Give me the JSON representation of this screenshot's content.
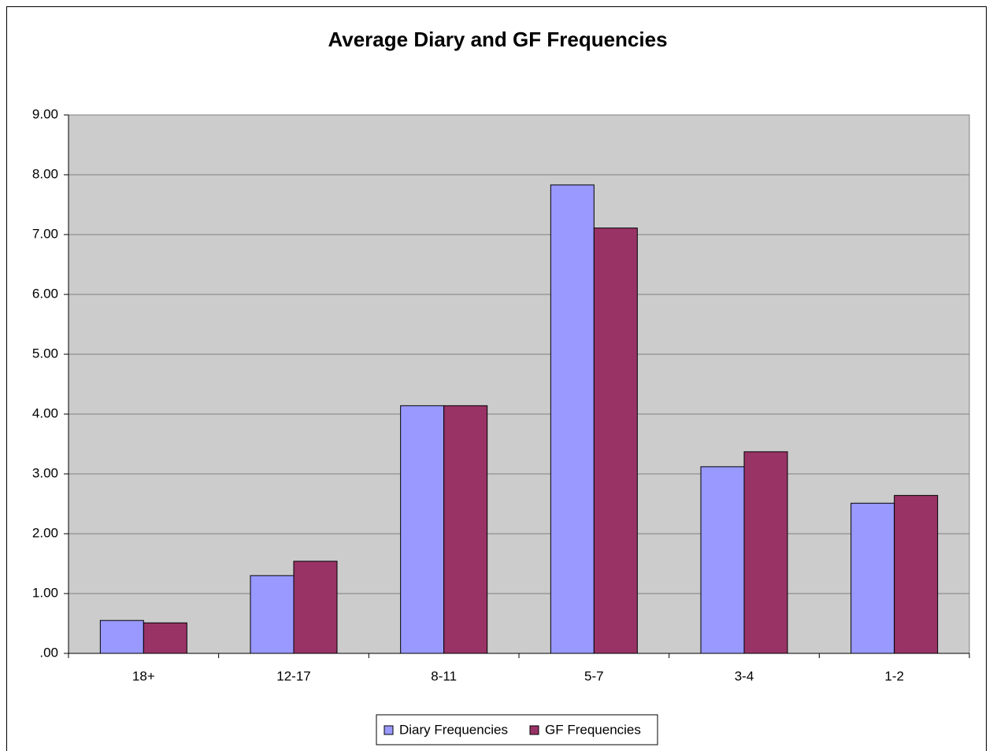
{
  "chart_data": {
    "type": "bar",
    "title": "Average Diary and GF Frequencies",
    "categories": [
      "18+",
      "12-17",
      "8-11",
      "5-7",
      "3-4",
      "1-2"
    ],
    "series": [
      {
        "name": "Diary Frequencies",
        "color": "#9999ff",
        "values": [
          0.55,
          1.3,
          4.14,
          7.83,
          3.12,
          2.51
        ]
      },
      {
        "name": "GF Frequencies",
        "color": "#993366",
        "values": [
          0.51,
          1.54,
          4.14,
          7.11,
          3.37,
          2.64
        ]
      }
    ],
    "ylim": [
      0,
      9
    ],
    "yticks": [
      {
        "value": 0,
        "label": ".00"
      },
      {
        "value": 1,
        "label": "1.00"
      },
      {
        "value": 2,
        "label": "2.00"
      },
      {
        "value": 3,
        "label": "3.00"
      },
      {
        "value": 4,
        "label": "4.00"
      },
      {
        "value": 5,
        "label": "5.00"
      },
      {
        "value": 6,
        "label": "6.00"
      },
      {
        "value": 7,
        "label": "7.00"
      },
      {
        "value": 8,
        "label": "8.00"
      },
      {
        "value": 9,
        "label": "9.00"
      }
    ],
    "grid": true,
    "legend": "bottom"
  }
}
